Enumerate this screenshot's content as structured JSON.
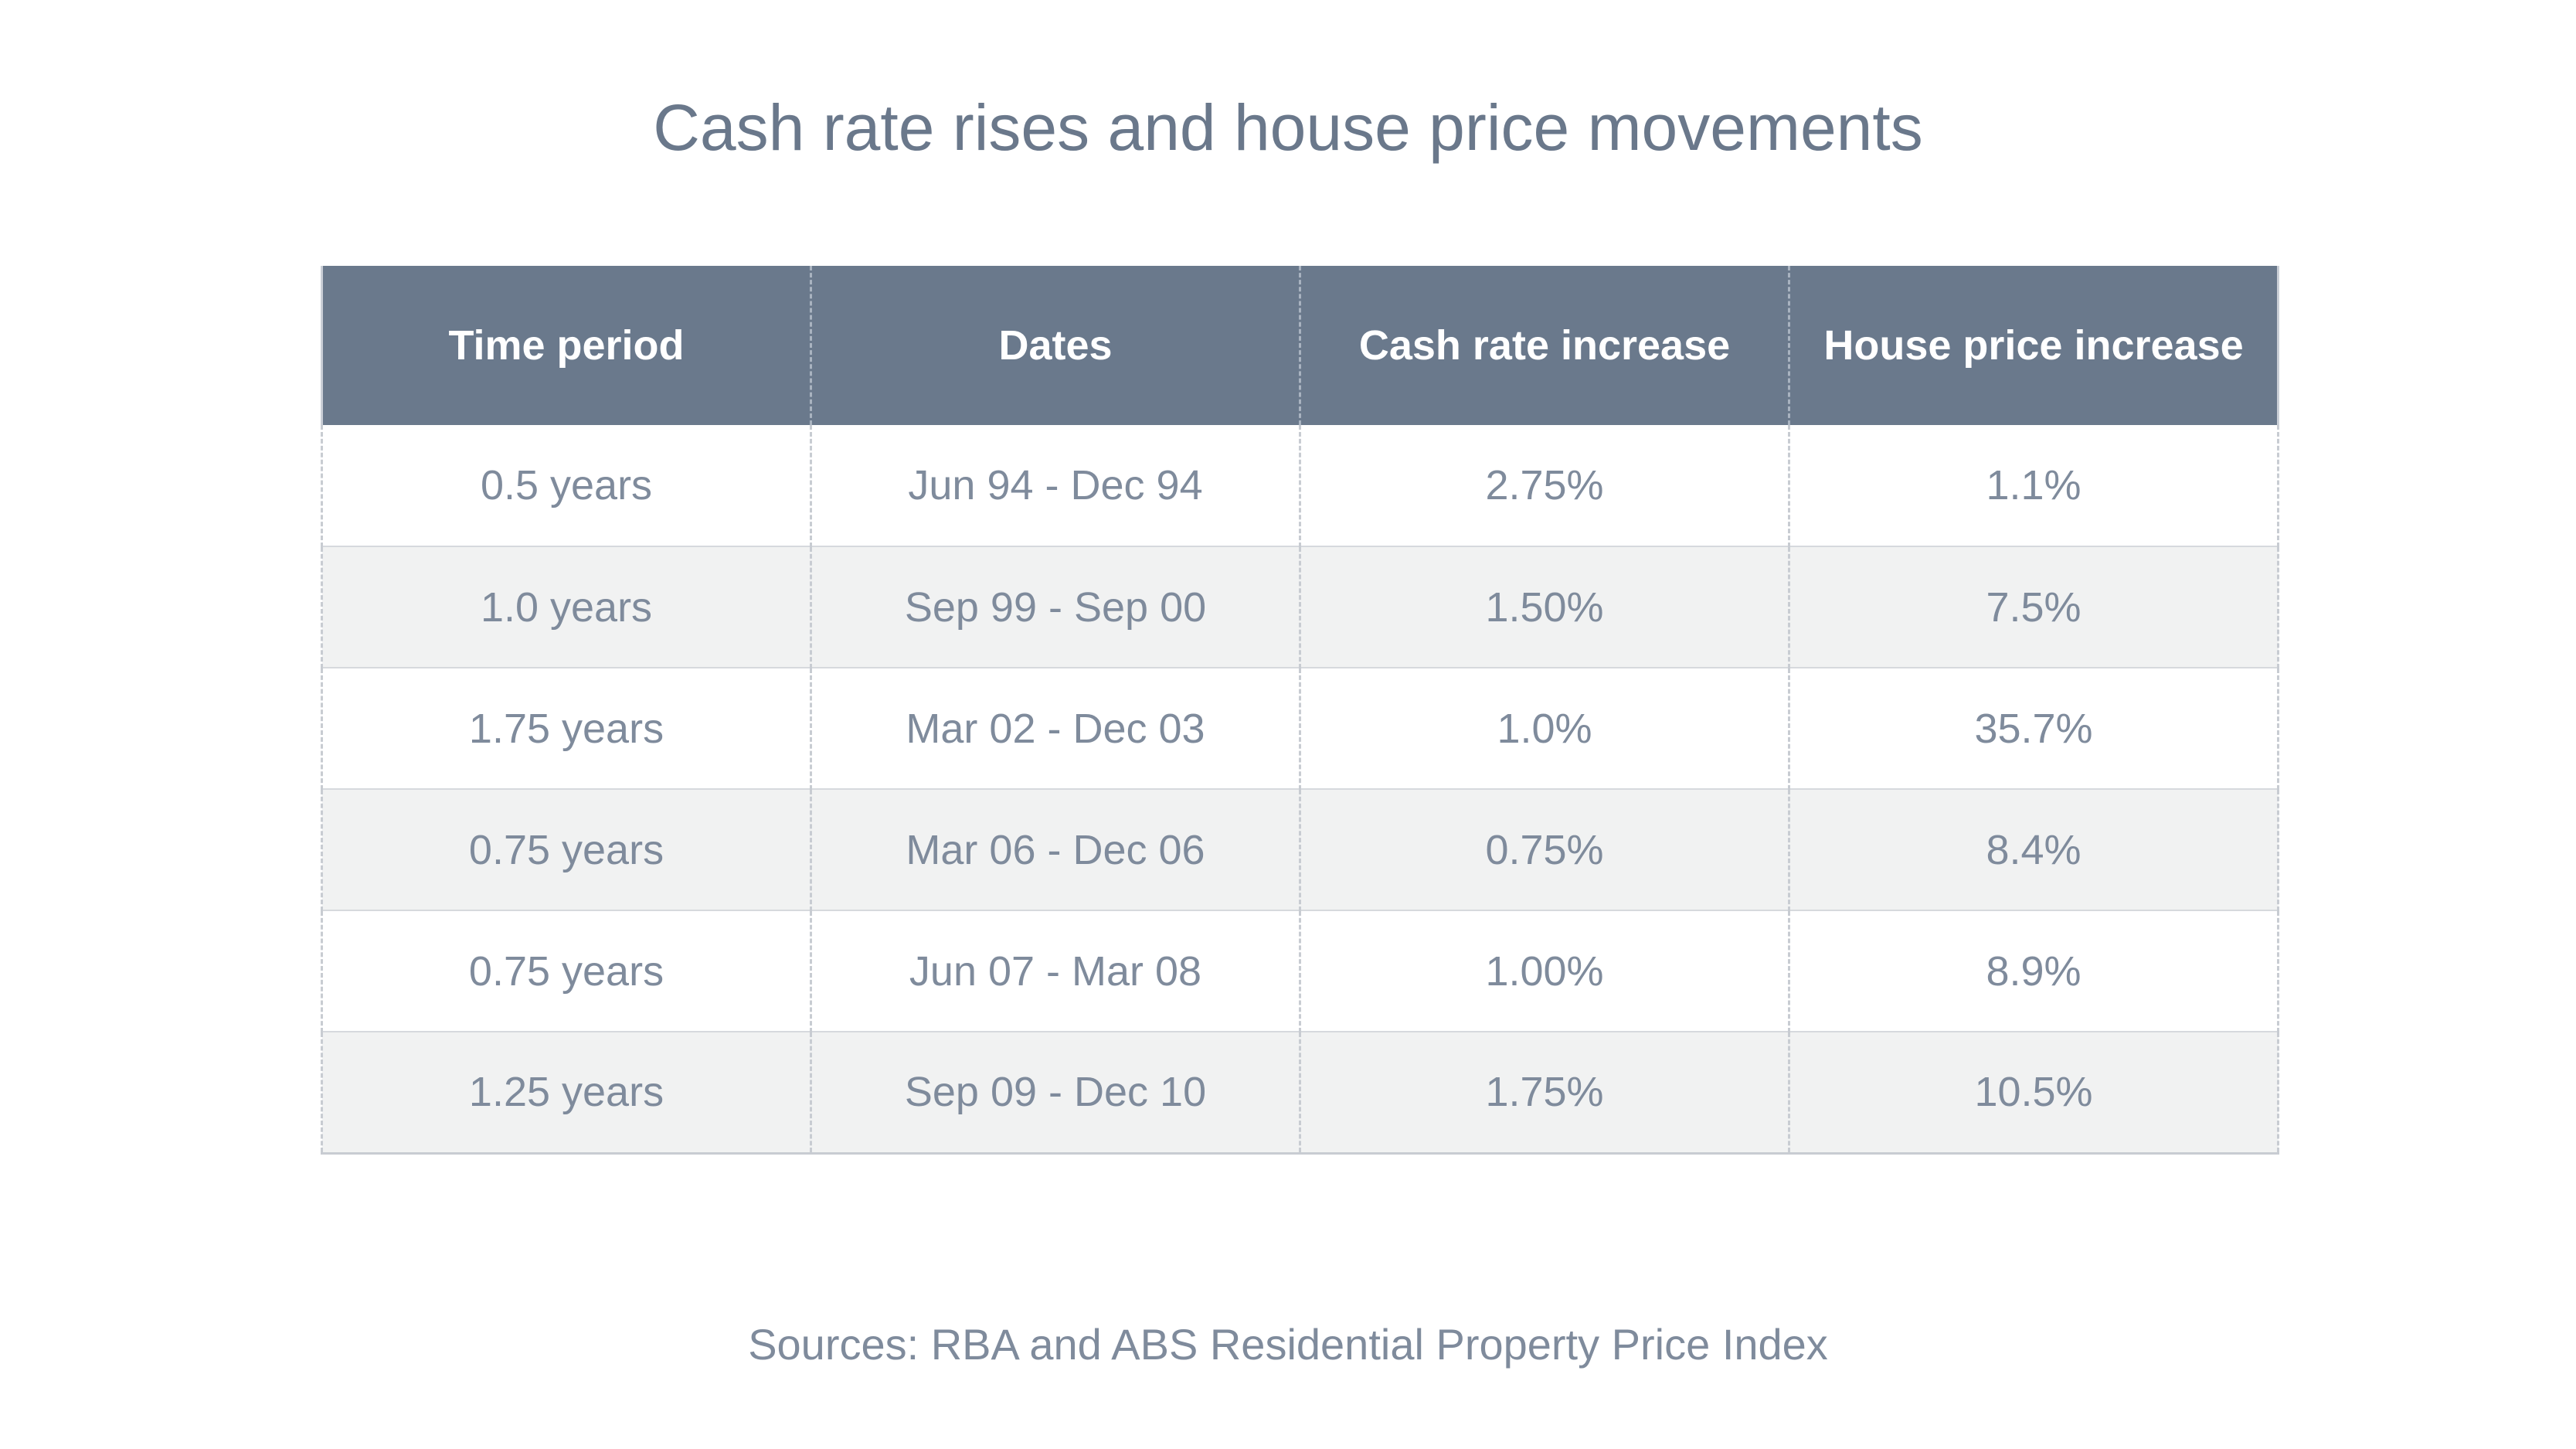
{
  "chart_data": {
    "type": "table",
    "title": "Cash rate rises and house price movements",
    "columns": [
      "Time period",
      "Dates",
      "Cash rate increase",
      "House price increase"
    ],
    "rows": [
      [
        "0.5 years",
        "Jun 94 - Dec 94",
        "2.75%",
        "1.1%"
      ],
      [
        "1.0 years",
        "Sep 99 - Sep 00",
        "1.50%",
        "7.5%"
      ],
      [
        "1.75 years",
        "Mar 02 - Dec 03",
        "1.0%",
        "35.7%"
      ],
      [
        "0.75 years",
        "Mar 06 - Dec 06",
        "0.75%",
        "8.4%"
      ],
      [
        "0.75 years",
        "Jun 07 - Mar 08",
        "1.00%",
        "8.9%"
      ],
      [
        "1.25 years",
        "Sep 09 - Dec 10",
        "1.75%",
        "10.5%"
      ]
    ],
    "source": "Sources: RBA and ABS Residential Property Price Index"
  },
  "colors": {
    "header_bg": "#6a798c",
    "header_text": "#ffffff",
    "title_text": "#6a788b",
    "cell_text": "#7f8b9c",
    "row_alt_bg": "#f1f2f2"
  }
}
